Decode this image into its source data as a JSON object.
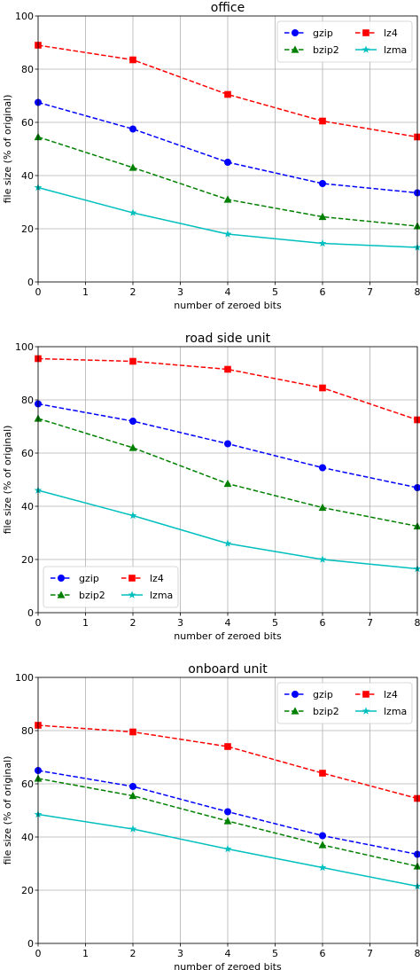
{
  "chart_data": [
    {
      "type": "line",
      "title": "office",
      "xlabel": "number of zeroed bits",
      "ylabel": "file size (% of original)",
      "xlim": [
        0,
        8
      ],
      "ylim": [
        0,
        100
      ],
      "xticks": [
        0,
        1,
        2,
        3,
        4,
        5,
        6,
        7,
        8
      ],
      "yticks": [
        0,
        20,
        40,
        60,
        80,
        100
      ],
      "grid": true,
      "legend_position": "top-right",
      "x": [
        0,
        2,
        4,
        6,
        8
      ],
      "series": [
        {
          "name": "gzip",
          "color": "#0000ff",
          "marker": "circle",
          "dash": "dashed",
          "values": [
            67.5,
            57.5,
            45,
            37,
            33.5
          ]
        },
        {
          "name": "bzip2",
          "color": "#008000",
          "marker": "triangle",
          "dash": "dashed",
          "values": [
            54.5,
            43,
            31,
            24.5,
            21
          ]
        },
        {
          "name": "lz4",
          "color": "#ff0000",
          "marker": "square",
          "dash": "dashed",
          "values": [
            89,
            83.5,
            70.5,
            60.5,
            54.5
          ]
        },
        {
          "name": "lzma",
          "color": "#00bfbf",
          "marker": "star",
          "dash": "solid",
          "values": [
            35.5,
            26,
            18,
            14.5,
            13
          ]
        }
      ]
    },
    {
      "type": "line",
      "title": "road side unit",
      "xlabel": "number of zeroed bits",
      "ylabel": "file size (% of original)",
      "xlim": [
        0,
        8
      ],
      "ylim": [
        0,
        100
      ],
      "xticks": [
        0,
        1,
        2,
        3,
        4,
        5,
        6,
        7,
        8
      ],
      "yticks": [
        0,
        20,
        40,
        60,
        80,
        100
      ],
      "grid": true,
      "legend_position": "bottom-left",
      "x": [
        0,
        2,
        4,
        6,
        8
      ],
      "series": [
        {
          "name": "gzip",
          "color": "#0000ff",
          "marker": "circle",
          "dash": "dashed",
          "values": [
            78.5,
            72,
            63.5,
            54.5,
            47
          ]
        },
        {
          "name": "bzip2",
          "color": "#008000",
          "marker": "triangle",
          "dash": "dashed",
          "values": [
            73,
            62,
            48.5,
            39.5,
            32.5
          ]
        },
        {
          "name": "lz4",
          "color": "#ff0000",
          "marker": "square",
          "dash": "dashed",
          "values": [
            95.5,
            94.5,
            91.5,
            84.5,
            72.5
          ]
        },
        {
          "name": "lzma",
          "color": "#00bfbf",
          "marker": "star",
          "dash": "solid",
          "values": [
            46,
            36.5,
            26,
            20,
            16.5
          ]
        }
      ]
    },
    {
      "type": "line",
      "title": "onboard unit",
      "xlabel": "number of zeroed bits",
      "ylabel": "file size (% of original)",
      "xlim": [
        0,
        8
      ],
      "ylim": [
        0,
        100
      ],
      "xticks": [
        0,
        1,
        2,
        3,
        4,
        5,
        6,
        7,
        8
      ],
      "yticks": [
        0,
        20,
        40,
        60,
        80,
        100
      ],
      "grid": true,
      "legend_position": "top-right",
      "x": [
        0,
        2,
        4,
        6,
        8
      ],
      "series": [
        {
          "name": "gzip",
          "color": "#0000ff",
          "marker": "circle",
          "dash": "dashed",
          "values": [
            65,
            59,
            49.5,
            40.5,
            33.5
          ]
        },
        {
          "name": "bzip2",
          "color": "#008000",
          "marker": "triangle",
          "dash": "dashed",
          "values": [
            62,
            55.5,
            46,
            37,
            29
          ]
        },
        {
          "name": "lz4",
          "color": "#ff0000",
          "marker": "square",
          "dash": "dashed",
          "values": [
            82,
            79.5,
            74,
            64,
            54.5
          ]
        },
        {
          "name": "lzma",
          "color": "#00bfbf",
          "marker": "star",
          "dash": "solid",
          "values": [
            48.5,
            43,
            35.5,
            28.5,
            21.5
          ]
        }
      ]
    }
  ]
}
